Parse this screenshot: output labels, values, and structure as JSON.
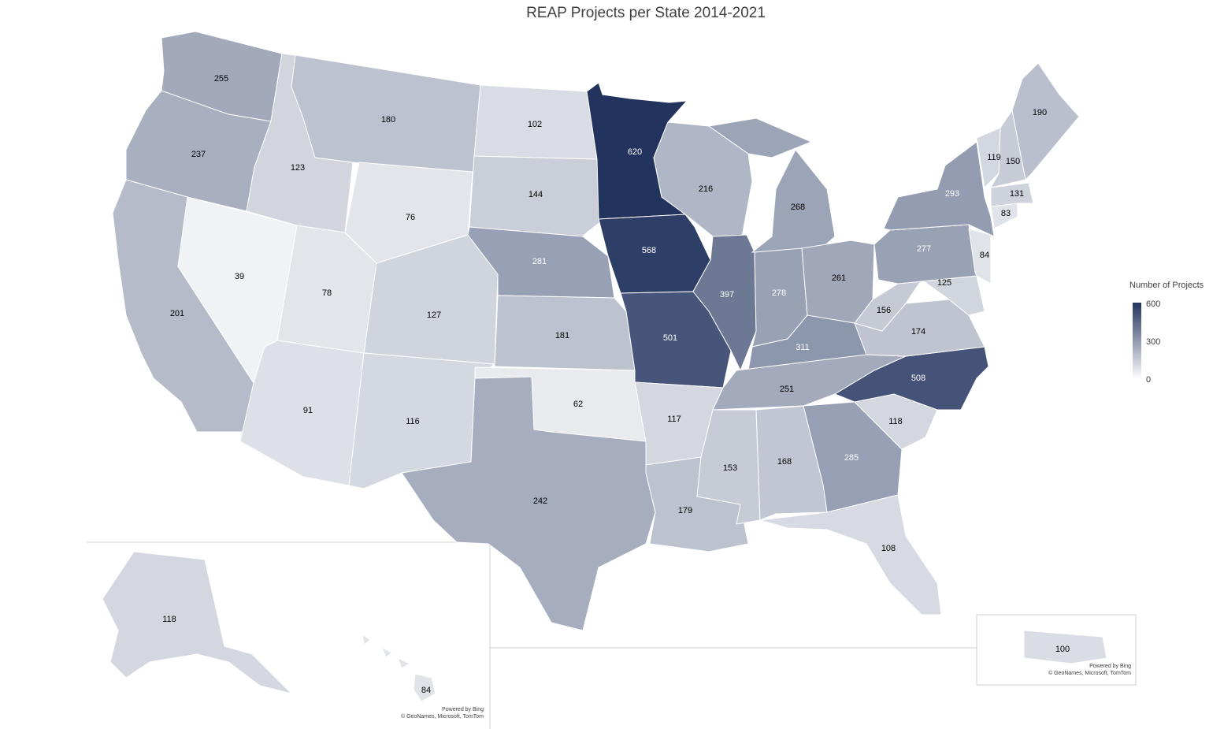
{
  "title": "REAP Projects per State 2014-2021",
  "legend": {
    "title": "Number of Projects",
    "ticks": [
      "600",
      "300",
      "0"
    ],
    "color_low": "#ffffff",
    "color_high": "#22345e",
    "max": 600
  },
  "states": [
    {
      "code": "WA",
      "value": 255
    },
    {
      "code": "OR",
      "value": 237
    },
    {
      "code": "CA",
      "value": 201
    },
    {
      "code": "NV",
      "value": 39
    },
    {
      "code": "ID",
      "value": 123
    },
    {
      "code": "MT",
      "value": 180
    },
    {
      "code": "WY",
      "value": 76
    },
    {
      "code": "UT",
      "value": 78
    },
    {
      "code": "AZ",
      "value": 91
    },
    {
      "code": "CO",
      "value": 127
    },
    {
      "code": "NM",
      "value": 116
    },
    {
      "code": "ND",
      "value": 102
    },
    {
      "code": "SD",
      "value": 144
    },
    {
      "code": "NE",
      "value": 281
    },
    {
      "code": "KS",
      "value": 181
    },
    {
      "code": "OK",
      "value": 62
    },
    {
      "code": "TX",
      "value": 242
    },
    {
      "code": "MN",
      "value": 620
    },
    {
      "code": "IA",
      "value": 568
    },
    {
      "code": "MO",
      "value": 501
    },
    {
      "code": "AR",
      "value": 117
    },
    {
      "code": "LA",
      "value": 179
    },
    {
      "code": "WI",
      "value": 216
    },
    {
      "code": "IL",
      "value": 397
    },
    {
      "code": "MI",
      "value": 268
    },
    {
      "code": "IN",
      "value": 278
    },
    {
      "code": "OH",
      "value": 261
    },
    {
      "code": "KY",
      "value": 311
    },
    {
      "code": "TN",
      "value": 251
    },
    {
      "code": "MS",
      "value": 153
    },
    {
      "code": "AL",
      "value": 168
    },
    {
      "code": "GA",
      "value": 285
    },
    {
      "code": "FL",
      "value": 108
    },
    {
      "code": "SC",
      "value": 118
    },
    {
      "code": "NC",
      "value": 508
    },
    {
      "code": "VA",
      "value": 174
    },
    {
      "code": "WV",
      "value": 156
    },
    {
      "code": "MD",
      "value": 125
    },
    {
      "code": "PA",
      "value": 277
    },
    {
      "code": "NY",
      "value": 293
    },
    {
      "code": "NJ",
      "value": 84
    },
    {
      "code": "CT",
      "value": 83
    },
    {
      "code": "MA",
      "value": 131
    },
    {
      "code": "VT",
      "value": 119
    },
    {
      "code": "NH",
      "value": 150
    },
    {
      "code": "ME",
      "value": 190
    },
    {
      "code": "AK",
      "value": 118
    },
    {
      "code": "HI",
      "value": 84
    },
    {
      "code": "PR",
      "value": 100
    }
  ],
  "credits": {
    "main": [
      "Powered by Bing",
      "© GeoNames, Microsoft, TomTom"
    ],
    "pr": [
      "Powered by Bing",
      "© GeoNames, Microsoft, TomTom"
    ]
  }
}
